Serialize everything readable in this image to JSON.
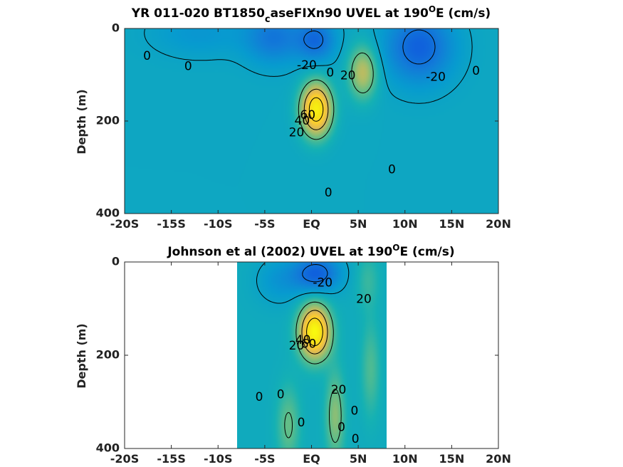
{
  "chart_data": [
    {
      "type": "heatmap",
      "title": {
        "main": "YR 011-020 BT1850",
        "sub": "c",
        "rest": "aseFIXn90 UVEL at 190",
        "sup": "O",
        "tail": "E (cm/s)"
      },
      "xlabel": "",
      "ylabel": "Depth (m)",
      "xlim": [
        -20,
        20
      ],
      "ylim": [
        0,
        400
      ],
      "y_reversed": true,
      "x_ticks": [
        -20,
        -15,
        -10,
        -5,
        0,
        5,
        10,
        15,
        20
      ],
      "x_tick_labels": [
        "-20S",
        "-15S",
        "-10S",
        "-5S",
        "EQ",
        "5N",
        "10N",
        "15N",
        "20N"
      ],
      "y_ticks": [
        0,
        200,
        400
      ],
      "y_tick_labels": [
        "0",
        "200",
        "400"
      ],
      "data_extent_x": [
        -20,
        20
      ],
      "colormap": "parula",
      "clim": [
        -40,
        80
      ],
      "contour_levels": [
        -20,
        0,
        20,
        40,
        60
      ],
      "features": [
        {
          "kind": "background",
          "value": 2
        },
        {
          "kind": "core",
          "x": 0.5,
          "depth": 175,
          "sx": 1.6,
          "sz": 55,
          "peak": 72
        },
        {
          "kind": "core",
          "x": 5.5,
          "depth": 95,
          "sx": 1.5,
          "sz": 55,
          "peak": 35
        },
        {
          "kind": "core",
          "x": 0.5,
          "depth": 25,
          "sx": 2.0,
          "sz": 45,
          "peak": -24
        },
        {
          "kind": "core",
          "x": -4.0,
          "depth": 20,
          "sx": 3.0,
          "sz": 55,
          "peak": -20
        },
        {
          "kind": "core",
          "x": 11.5,
          "depth": 40,
          "sx": 3.5,
          "sz": 75,
          "peak": -28
        },
        {
          "kind": "core",
          "x": -12.0,
          "depth": 10,
          "sx": 5.0,
          "sz": 50,
          "peak": -8
        }
      ],
      "contour_labels": [
        {
          "text": "0",
          "x": -17.6,
          "depth": 60
        },
        {
          "text": "0",
          "x": -13.2,
          "depth": 82
        },
        {
          "text": "-20",
          "x": -0.5,
          "depth": 80
        },
        {
          "text": "0",
          "x": 2.0,
          "depth": 96
        },
        {
          "text": "20",
          "x": 3.9,
          "depth": 102
        },
        {
          "text": "-20",
          "x": 13.3,
          "depth": 105
        },
        {
          "text": "0",
          "x": 17.6,
          "depth": 92
        },
        {
          "text": "20",
          "x": -1.6,
          "depth": 225
        },
        {
          "text": "40",
          "x": -1.0,
          "depth": 200
        },
        {
          "text": "60",
          "x": -0.4,
          "depth": 188
        },
        {
          "text": "0",
          "x": 8.6,
          "depth": 305
        },
        {
          "text": "0",
          "x": 1.8,
          "depth": 355
        }
      ]
    },
    {
      "type": "heatmap",
      "title": {
        "main": "Johnson et al (2002) UVEL at 190",
        "sub": "",
        "rest": "",
        "sup": "O",
        "tail": "E (cm/s)"
      },
      "xlabel": "",
      "ylabel": "Depth (m)",
      "xlim": [
        -20,
        20
      ],
      "ylim": [
        0,
        400
      ],
      "y_reversed": true,
      "x_ticks": [
        -20,
        -15,
        -10,
        -5,
        0,
        5,
        10,
        15,
        20
      ],
      "x_tick_labels": [
        "-20S",
        "-15S",
        "-10S",
        "-5S",
        "EQ",
        "5N",
        "10N",
        "15N",
        "20N"
      ],
      "y_ticks": [
        0,
        200,
        400
      ],
      "y_tick_labels": [
        "0",
        "200",
        "400"
      ],
      "data_extent_x": [
        -8,
        8
      ],
      "colormap": "parula",
      "clim": [
        -40,
        80
      ],
      "contour_levels": [
        -20,
        0,
        20,
        40,
        60
      ],
      "features": [
        {
          "kind": "background",
          "value": 4
        },
        {
          "kind": "core",
          "x": 0.3,
          "depth": 150,
          "sx": 1.6,
          "sz": 55,
          "peak": 75
        },
        {
          "kind": "core",
          "x": 0.5,
          "depth": 25,
          "sx": 2.5,
          "sz": 40,
          "peak": -30
        },
        {
          "kind": "core",
          "x": -3.5,
          "depth": 40,
          "sx": 2.5,
          "sz": 50,
          "peak": -10
        },
        {
          "kind": "core",
          "x": 6.0,
          "depth": 40,
          "sx": 1.2,
          "sz": 60,
          "peak": 10
        },
        {
          "kind": "core",
          "x": 2.5,
          "depth": 330,
          "sx": 1.0,
          "sz": 90,
          "peak": 24
        },
        {
          "kind": "core",
          "x": -2.5,
          "depth": 350,
          "sx": 1.2,
          "sz": 80,
          "peak": 18
        },
        {
          "kind": "core",
          "x": 6.3,
          "depth": 230,
          "sx": 1.0,
          "sz": 100,
          "peak": 14
        }
      ],
      "contour_labels": [
        {
          "text": "-20",
          "x": 1.2,
          "depth": 45
        },
        {
          "text": "20",
          "x": 5.6,
          "depth": 80
        },
        {
          "text": "20",
          "x": -1.6,
          "depth": 180
        },
        {
          "text": "40",
          "x": -0.9,
          "depth": 168
        },
        {
          "text": "60",
          "x": -0.3,
          "depth": 176
        },
        {
          "text": "20",
          "x": 2.9,
          "depth": 275
        },
        {
          "text": "0",
          "x": -5.6,
          "depth": 290
        },
        {
          "text": "0",
          "x": -3.3,
          "depth": 285
        },
        {
          "text": "0",
          "x": 4.6,
          "depth": 320
        },
        {
          "text": "0",
          "x": -1.1,
          "depth": 345
        },
        {
          "text": "0",
          "x": 3.2,
          "depth": 355
        },
        {
          "text": "0",
          "x": 4.7,
          "depth": 380
        }
      ]
    }
  ]
}
